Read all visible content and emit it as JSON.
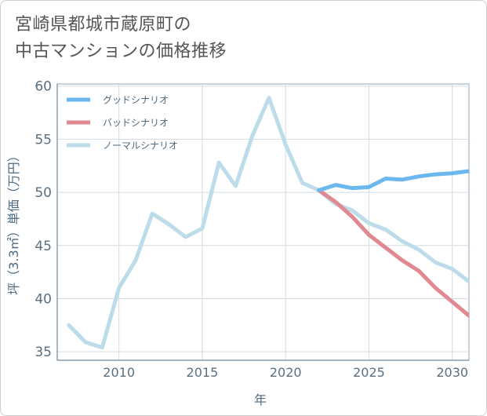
{
  "title_lines": [
    "宮崎県都城市蔵原町の",
    "中古マンションの価格推移"
  ],
  "chart_data": {
    "type": "line",
    "title": "宮崎県都城市蔵原町の中古マンションの価格推移",
    "xlabel": "年",
    "ylabel": "坪（3.3㎡）単価（万円）",
    "xlim": [
      2006.3,
      2031
    ],
    "ylim": [
      34.2,
      60.2
    ],
    "xticks": [
      2010,
      2015,
      2020,
      2025,
      2030
    ],
    "yticks": [
      35,
      40,
      45,
      50,
      55,
      60
    ],
    "grid": true,
    "legend_position": "top-left",
    "series": [
      {
        "name": "グッドシナリオ",
        "color": "#6bb8ee",
        "x": [
          2022,
          2023,
          2024,
          2025,
          2026,
          2027,
          2028,
          2029,
          2030,
          2031
        ],
        "values": [
          50.2,
          50.7,
          50.4,
          50.5,
          51.3,
          51.2,
          51.5,
          51.7,
          51.8,
          52.0
        ]
      },
      {
        "name": "バッドシナリオ",
        "color": "#e08990",
        "x": [
          2022,
          2023,
          2024,
          2025,
          2026,
          2027,
          2028,
          2029,
          2030,
          2031
        ],
        "values": [
          50.2,
          49.1,
          47.7,
          46.0,
          44.8,
          43.6,
          42.6,
          41.0,
          39.7,
          38.4
        ]
      },
      {
        "name": "ノーマルシナリオ",
        "color": "#bcdce9",
        "x": [
          2007,
          2008,
          2009,
          2010,
          2011,
          2012,
          2013,
          2014,
          2015,
          2016,
          2017,
          2018,
          2019,
          2020,
          2021,
          2022,
          2023,
          2024,
          2025,
          2026,
          2027,
          2028,
          2029,
          2030,
          2031
        ],
        "values": [
          37.5,
          35.9,
          35.4,
          41.0,
          43.6,
          48.0,
          47.0,
          45.8,
          46.6,
          52.8,
          50.6,
          55.3,
          58.9,
          54.5,
          50.9,
          50.2,
          48.9,
          48.3,
          47.1,
          46.5,
          45.4,
          44.6,
          43.4,
          42.8,
          41.6
        ]
      }
    ]
  }
}
